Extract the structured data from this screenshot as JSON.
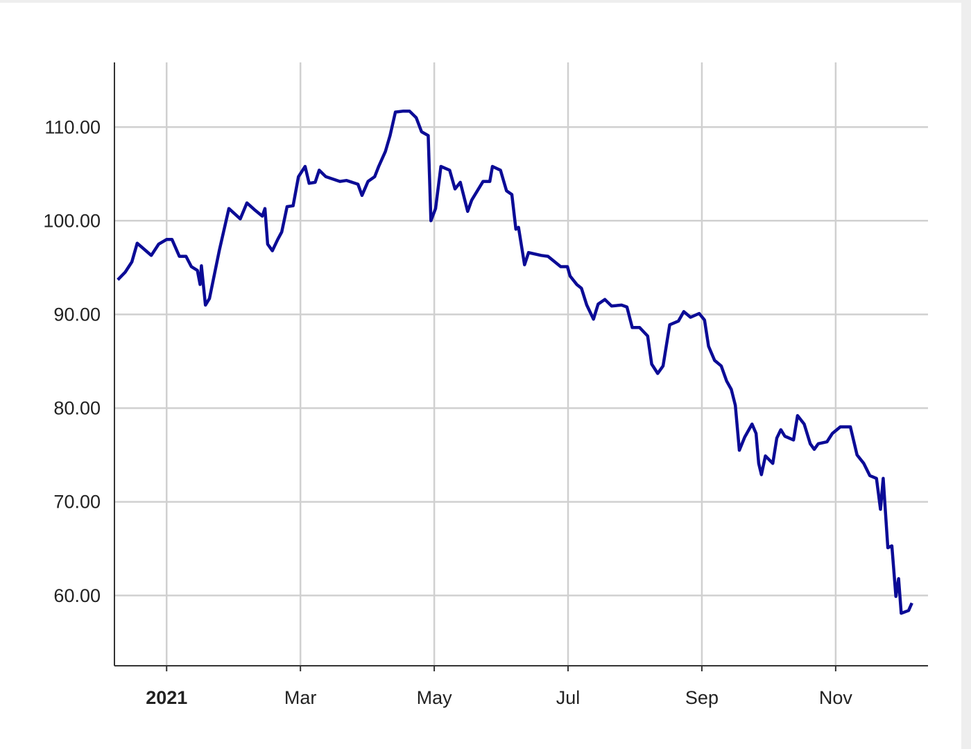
{
  "chart_data": {
    "type": "line",
    "color": "#0b0b96",
    "grid": true,
    "xlim": [
      -0.78,
      11.38
    ],
    "xticks": [
      {
        "value": 0,
        "label": "2021"
      },
      {
        "value": 2,
        "label": "Mar"
      },
      {
        "value": 4,
        "label": "May"
      },
      {
        "value": 6,
        "label": "Jul"
      },
      {
        "value": 8,
        "label": "Sep"
      },
      {
        "value": 10,
        "label": "Nov"
      }
    ],
    "ylim": [
      52.5,
      116.9
    ],
    "yticks": [
      {
        "value": 60,
        "label": "60.00"
      },
      {
        "value": 70,
        "label": "70.00"
      },
      {
        "value": 80,
        "label": "80.00"
      },
      {
        "value": 90,
        "label": "90.00"
      },
      {
        "value": 100,
        "label": "100.00"
      },
      {
        "value": 110,
        "label": "110.00"
      }
    ],
    "x": [
      -0.73,
      -0.62,
      -0.52,
      -0.44,
      -0.31,
      -0.23,
      -0.12,
      0,
      0.08,
      0.19,
      0.29,
      0.37,
      0.46,
      0.5,
      0.52,
      0.58,
      0.64,
      0.79,
      0.93,
      1.1,
      1.2,
      1.31,
      1.43,
      1.47,
      1.51,
      1.58,
      1.66,
      1.72,
      1.8,
      1.89,
      1.97,
      2.07,
      2.13,
      2.22,
      2.28,
      2.38,
      2.59,
      2.69,
      2.86,
      2.92,
      3.01,
      3.11,
      3.17,
      3.27,
      3.34,
      3.42,
      3.54,
      3.63,
      3.73,
      3.81,
      3.91,
      3.95,
      4.02,
      4.1,
      4.23,
      4.31,
      4.39,
      4.5,
      4.56,
      4.73,
      4.83,
      4.87,
      4.99,
      5.08,
      5.16,
      5.22,
      5.26,
      5.35,
      5.41,
      5.6,
      5.7,
      5.89,
      5.99,
      6.03,
      6.13,
      6.2,
      6.28,
      6.38,
      6.45,
      6.55,
      6.65,
      6.8,
      6.88,
      6.96,
      7.07,
      7.19,
      7.25,
      7.34,
      7.42,
      7.52,
      7.65,
      7.73,
      7.83,
      7.96,
      8.04,
      8.1,
      8.19,
      8.29,
      8.37,
      8.44,
      8.5,
      8.56,
      8.64,
      8.75,
      8.81,
      8.85,
      8.89,
      8.95,
      9.06,
      9.12,
      9.18,
      9.24,
      9.37,
      9.43,
      9.53,
      9.62,
      9.68,
      9.74,
      9.87,
      9.95,
      10.07,
      10.22,
      10.32,
      10.42,
      10.51,
      10.61,
      10.67,
      10.71,
      10.78,
      10.84,
      10.9,
      10.94,
      10.98,
      11.09,
      11.14
    ],
    "values": [
      93.7,
      94.5,
      95.6,
      97.6,
      96.8,
      96.3,
      97.5,
      98.0,
      98.0,
      96.2,
      96.2,
      95.1,
      94.7,
      93.2,
      95.2,
      91.0,
      91.7,
      96.9,
      101.3,
      100.2,
      101.9,
      101.2,
      100.5,
      101.3,
      97.5,
      96.8,
      98.0,
      98.8,
      101.5,
      101.6,
      104.7,
      105.8,
      104.0,
      104.1,
      105.4,
      104.7,
      104.2,
      104.3,
      103.9,
      102.7,
      104.2,
      104.7,
      105.8,
      107.4,
      109.1,
      111.6,
      111.7,
      111.7,
      111.0,
      109.5,
      109.1,
      100.0,
      101.3,
      105.8,
      105.4,
      103.4,
      104.1,
      101.0,
      102.2,
      104.2,
      104.2,
      105.8,
      105.4,
      103.2,
      102.8,
      99.1,
      99.3,
      95.3,
      96.6,
      96.3,
      96.2,
      95.1,
      95.1,
      94.1,
      93.2,
      92.8,
      91.0,
      89.5,
      91.1,
      91.6,
      90.9,
      91.0,
      90.8,
      88.6,
      88.6,
      87.7,
      84.7,
      83.7,
      84.5,
      88.9,
      89.3,
      90.3,
      89.7,
      90.1,
      89.4,
      86.6,
      85.1,
      84.5,
      82.9,
      82.0,
      80.3,
      75.5,
      76.9,
      78.3,
      77.3,
      74.1,
      72.9,
      74.9,
      74.1,
      76.8,
      77.7,
      77.0,
      76.6,
      79.2,
      78.3,
      76.2,
      75.6,
      76.2,
      76.4,
      77.3,
      78.0,
      78.0,
      75.0,
      74.1,
      72.8,
      72.5,
      69.2,
      72.5,
      65.1,
      65.3,
      59.9,
      61.8,
      58.1,
      58.4,
      59.2
    ]
  }
}
